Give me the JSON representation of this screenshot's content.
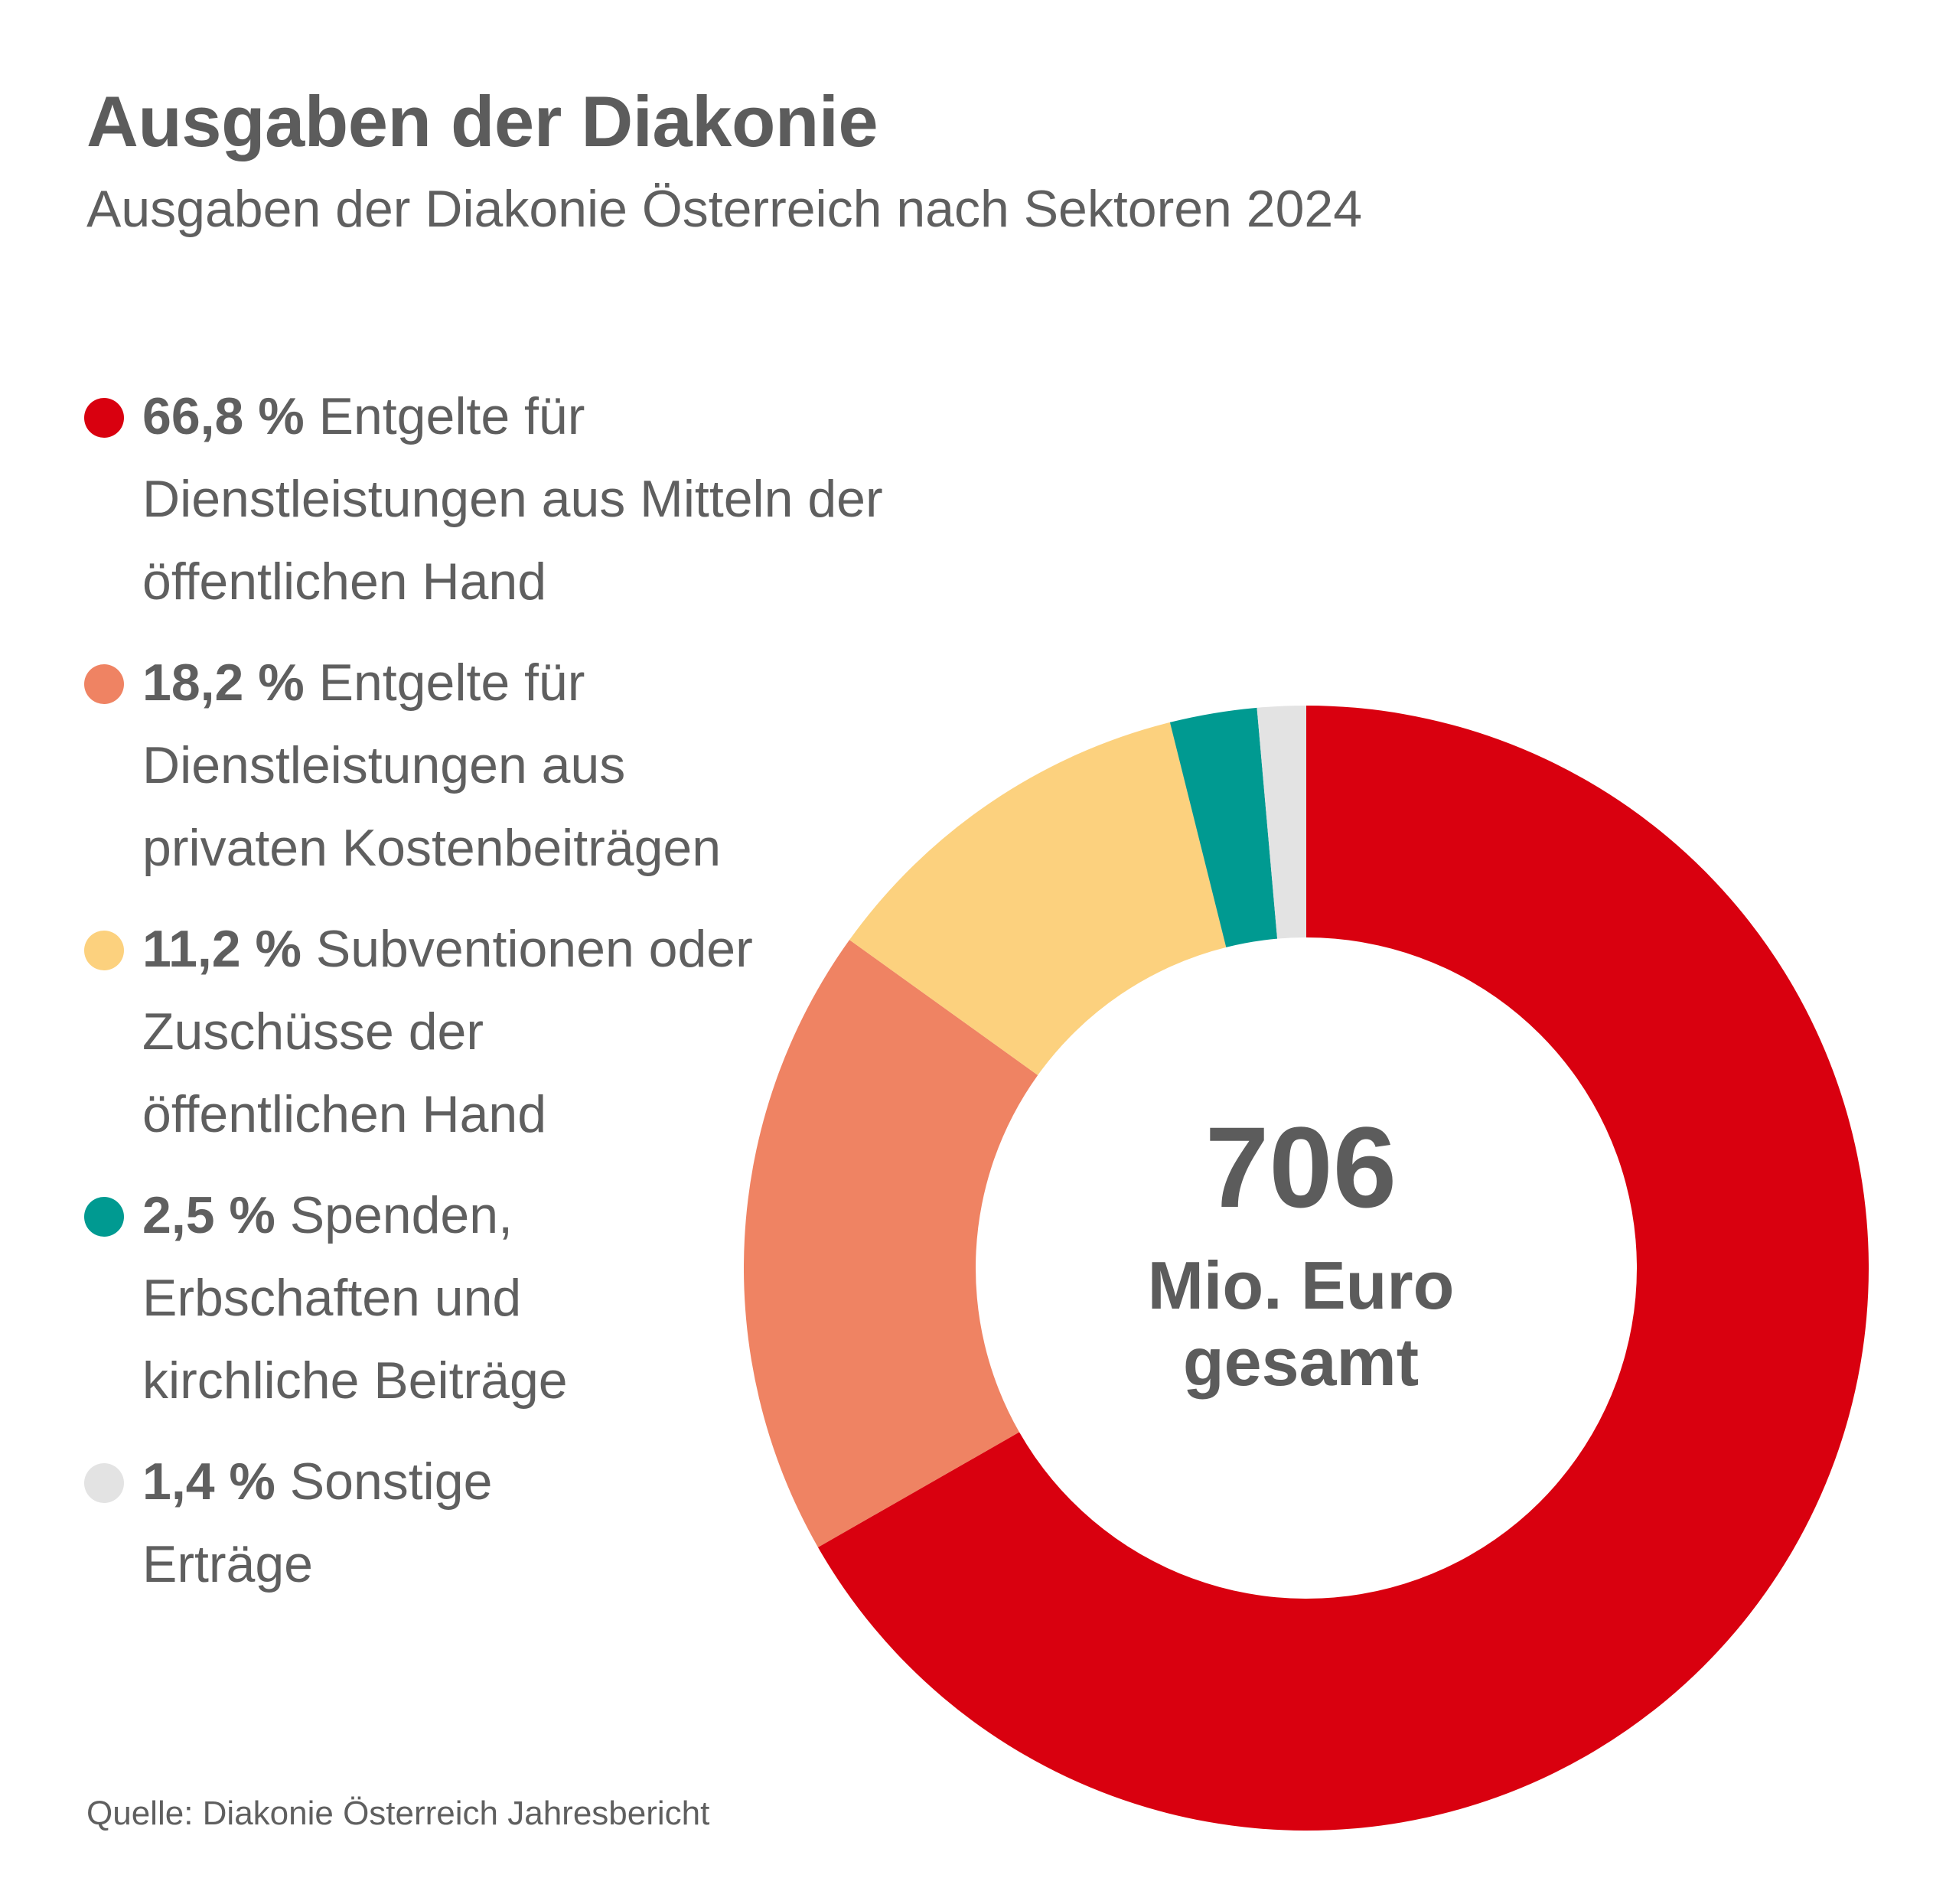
{
  "colors": {
    "red": "#d9000f",
    "salmon": "#ef8363",
    "yellow": "#fcd17e",
    "teal": "#009a91",
    "grey": "#e3e3e3"
  },
  "chart_data": {
    "type": "pie",
    "variant": "donut",
    "title": "Ausgaben der Diakonie",
    "subtitle": "Ausgaben der Diakonie Österreich nach Sektoren 2024",
    "source": "Quelle: Diakonie Österreich Jahresbericht",
    "center": {
      "value": "706",
      "label_line1": "Mio. Euro",
      "label_line2": "gesamt"
    },
    "legend_position": "left",
    "slices": [
      {
        "pct_label": "66,8 %",
        "label": "Entgelte für Dienstleistungen aus Mitteln der öffentlichen Hand",
        "value": 66.8,
        "color": "#d9000f"
      },
      {
        "pct_label": "18,2 %",
        "label": "Entgelte für Dienstleistungen aus privaten Kostenbeiträgen",
        "value": 18.2,
        "color": "#ef8363"
      },
      {
        "pct_label": "11,2 %",
        "label": "Subventionen oder Zuschüsse der öffentlichen Hand",
        "value": 11.2,
        "color": "#fcd17e"
      },
      {
        "pct_label": "2,5 %",
        "label": "Spenden, Erbschaften und kirchliche Beiträge",
        "value": 2.5,
        "color": "#009a91"
      },
      {
        "pct_label": "1,4 %",
        "label": "Sonstige Erträge",
        "value": 1.4,
        "color": "#e3e3e3"
      }
    ]
  }
}
